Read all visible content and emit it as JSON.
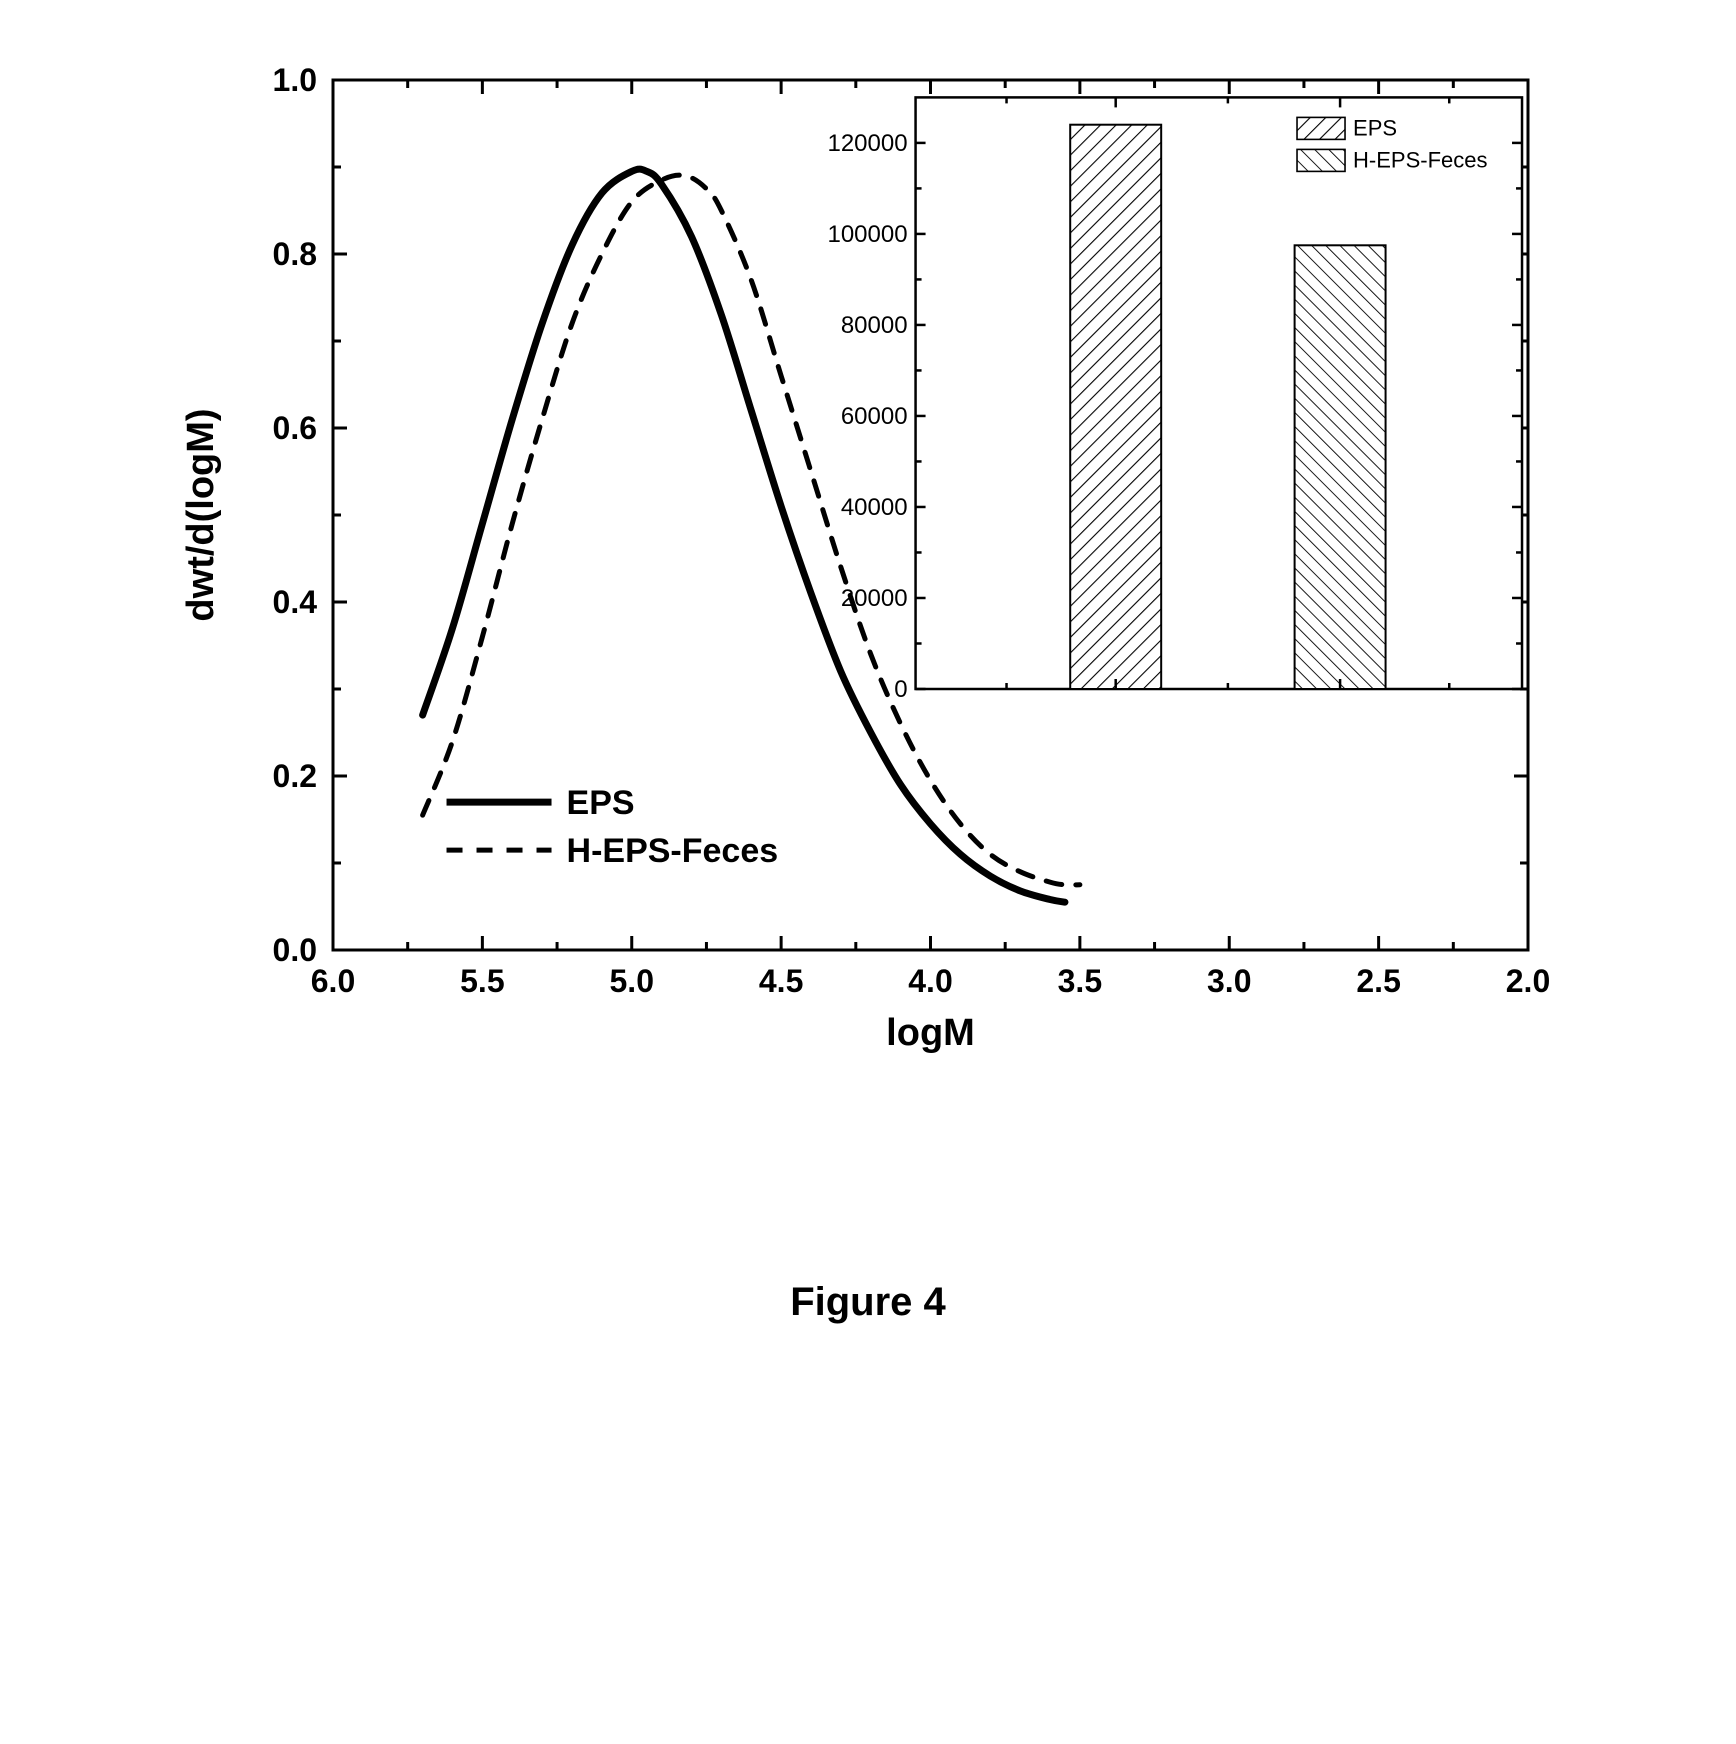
{
  "main_chart": {
    "type": "line",
    "xlabel": "logM",
    "ylabel": "dwt/d(logM)",
    "label_fontsize": 38,
    "tick_fontsize": 32,
    "xlim": [
      6.0,
      2.0
    ],
    "ylim": [
      0.0,
      1.0
    ],
    "xticks": [
      6.0,
      5.5,
      5.0,
      4.5,
      4.0,
      3.5,
      3.0,
      2.5,
      2.0
    ],
    "yticks": [
      0.0,
      0.2,
      0.4,
      0.6,
      0.8,
      1.0
    ],
    "minor_x_count": 1,
    "minor_y_count": 1,
    "background_color": "#ffffff",
    "axis_color": "#000000",
    "axis_width": 3,
    "tick_len_major": 14,
    "tick_len_minor": 8,
    "series": [
      {
        "name": "EPS",
        "color": "#000000",
        "width": 7,
        "dash": "none",
        "points": [
          [
            5.7,
            0.27
          ],
          [
            5.6,
            0.37
          ],
          [
            5.5,
            0.49
          ],
          [
            5.4,
            0.61
          ],
          [
            5.3,
            0.72
          ],
          [
            5.2,
            0.81
          ],
          [
            5.1,
            0.87
          ],
          [
            5.0,
            0.895
          ],
          [
            4.95,
            0.895
          ],
          [
            4.9,
            0.88
          ],
          [
            4.8,
            0.82
          ],
          [
            4.7,
            0.73
          ],
          [
            4.6,
            0.62
          ],
          [
            4.5,
            0.51
          ],
          [
            4.4,
            0.41
          ],
          [
            4.3,
            0.32
          ],
          [
            4.2,
            0.25
          ],
          [
            4.1,
            0.19
          ],
          [
            4.0,
            0.145
          ],
          [
            3.9,
            0.11
          ],
          [
            3.8,
            0.085
          ],
          [
            3.7,
            0.068
          ],
          [
            3.6,
            0.058
          ],
          [
            3.55,
            0.055
          ]
        ]
      },
      {
        "name": "H-EPS-Feces",
        "color": "#000000",
        "width": 5,
        "dash": "16 14",
        "points": [
          [
            5.7,
            0.155
          ],
          [
            5.6,
            0.24
          ],
          [
            5.5,
            0.36
          ],
          [
            5.4,
            0.49
          ],
          [
            5.3,
            0.61
          ],
          [
            5.2,
            0.72
          ],
          [
            5.1,
            0.8
          ],
          [
            5.0,
            0.86
          ],
          [
            4.9,
            0.885
          ],
          [
            4.82,
            0.89
          ],
          [
            4.75,
            0.875
          ],
          [
            4.7,
            0.85
          ],
          [
            4.6,
            0.77
          ],
          [
            4.5,
            0.66
          ],
          [
            4.4,
            0.55
          ],
          [
            4.3,
            0.44
          ],
          [
            4.2,
            0.34
          ],
          [
            4.1,
            0.26
          ],
          [
            4.0,
            0.195
          ],
          [
            3.9,
            0.145
          ],
          [
            3.8,
            0.11
          ],
          [
            3.7,
            0.09
          ],
          [
            3.6,
            0.078
          ],
          [
            3.55,
            0.075
          ],
          [
            3.5,
            0.075
          ]
        ]
      }
    ],
    "legend": {
      "x_data": 5.62,
      "y_data": 0.17,
      "fontsize": 34,
      "items": [
        {
          "label": "EPS",
          "dash": "none",
          "width": 7
        },
        {
          "label": "H-EPS-Feces",
          "dash": "16 14",
          "width": 5
        }
      ]
    }
  },
  "inset_chart": {
    "type": "bar",
    "ylim": [
      0,
      130000
    ],
    "yticks": [
      0,
      20000,
      40000,
      60000,
      80000,
      100000,
      120000
    ],
    "tick_fontsize": 24,
    "axis_color": "#000000",
    "axis_width": 2.5,
    "bar_width": 0.3,
    "bars": [
      {
        "label": "EPS",
        "value": 124000,
        "x": 0.33,
        "hatch": "diag-right"
      },
      {
        "label": "H-EPS-Feces",
        "value": 97500,
        "x": 0.7,
        "hatch": "diag-left"
      }
    ],
    "legend": {
      "fontsize": 22,
      "items": [
        {
          "label": "EPS",
          "hatch": "diag-right"
        },
        {
          "label": "H-EPS-Feces",
          "hatch": "diag-left"
        }
      ]
    }
  },
  "caption": "Figure 4"
}
